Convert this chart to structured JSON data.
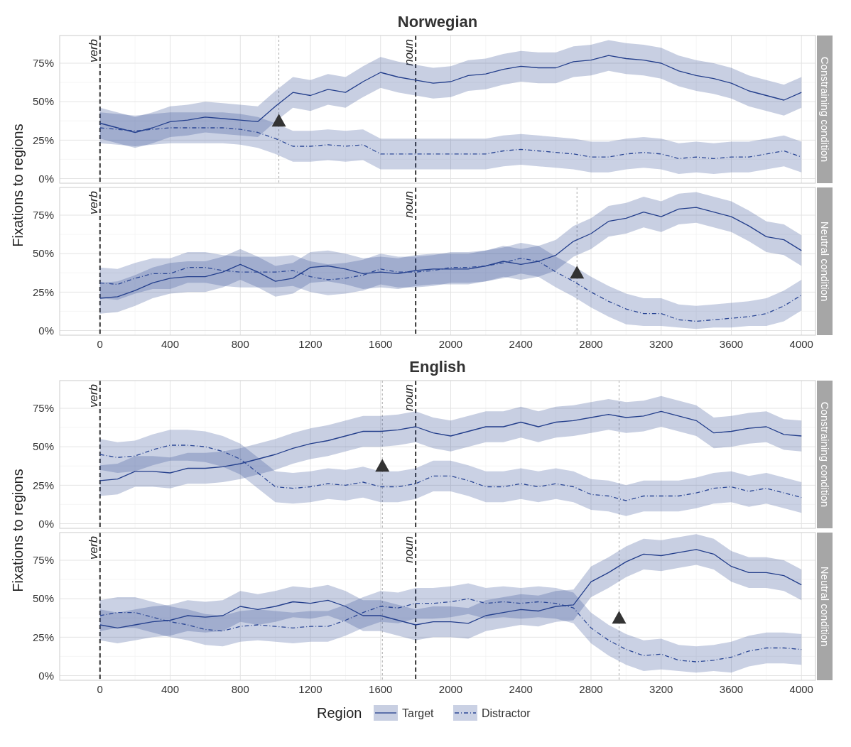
{
  "chart_data": [
    {
      "type": "line",
      "title": "Norwegian",
      "ylabel": "Fixations to regions",
      "y2label": "Constraining condition",
      "tick_labels": "y",
      "grid": true,
      "x": [
        0,
        100,
        200,
        300,
        400,
        500,
        600,
        700,
        800,
        900,
        1000,
        1100,
        1200,
        1300,
        1400,
        1500,
        1600,
        1700,
        1800,
        1900,
        2000,
        2100,
        2200,
        2300,
        2400,
        2500,
        2600,
        2700,
        2800,
        2900,
        3000,
        3100,
        3200,
        3300,
        3400,
        3500,
        3600,
        3700,
        3800,
        3900,
        4000
      ],
      "xlim": [
        -230,
        4080
      ],
      "xticks": [
        0,
        400,
        800,
        1200,
        1600,
        2000,
        2400,
        2800,
        3200,
        3600,
        4000
      ],
      "ylim": [
        -3,
        93
      ],
      "yticks": [
        {
          "value": 0,
          "label": "0%"
        },
        {
          "value": 25,
          "label": "25%"
        },
        {
          "value": 50,
          "label": "50%"
        },
        {
          "value": 75,
          "label": "75%"
        }
      ],
      "ref_lines": [
        {
          "axis": "x",
          "value": 0,
          "label": "verb",
          "line_style": "dashed",
          "color": "#333333"
        },
        {
          "axis": "x",
          "value": 1800,
          "label": "noun",
          "line_style": "dashed",
          "color": "#333333"
        },
        {
          "axis": "x",
          "value": 1020,
          "line_style": "dotted",
          "color": "#aaaaaa"
        }
      ],
      "series": [
        {
          "color": "#233e8b",
          "line_style": "solid",
          "values": [
            36,
            33,
            30,
            33,
            37,
            38,
            40,
            39,
            38,
            37,
            47,
            56,
            54,
            58,
            56,
            63,
            69,
            66,
            64,
            62,
            63,
            67,
            68,
            71,
            73,
            72,
            72,
            76,
            77,
            80,
            78,
            77,
            75,
            70,
            67,
            65,
            62,
            57,
            54,
            51,
            56
          ],
          "lower": [
            26,
            23,
            20,
            23,
            27,
            28,
            30,
            29,
            28,
            27,
            37,
            46,
            44,
            48,
            46,
            53,
            59,
            56,
            54,
            52,
            53,
            57,
            58,
            61,
            63,
            62,
            62,
            66,
            67,
            70,
            68,
            67,
            65,
            60,
            57,
            55,
            52,
            47,
            44,
            41,
            46
          ],
          "upper": [
            46,
            43,
            40,
            43,
            47,
            48,
            50,
            49,
            48,
            47,
            57,
            66,
            64,
            68,
            66,
            73,
            79,
            76,
            74,
            72,
            73,
            77,
            78,
            81,
            83,
            82,
            82,
            86,
            87,
            90,
            88,
            87,
            85,
            80,
            77,
            75,
            72,
            67,
            64,
            61,
            66
          ]
        },
        {
          "color": "#2b4795",
          "line_style": "dashdot",
          "values": [
            33,
            32,
            31,
            32,
            33,
            33,
            33,
            33,
            32,
            30,
            26,
            21,
            21,
            22,
            21,
            22,
            16,
            16,
            16,
            16,
            16,
            16,
            16,
            18,
            19,
            18,
            17,
            16,
            14,
            14,
            16,
            17,
            16,
            13,
            14,
            13,
            14,
            14,
            16,
            18,
            14
          ],
          "lower": [
            23,
            22,
            21,
            22,
            23,
            23,
            23,
            23,
            22,
            20,
            16,
            11,
            11,
            12,
            11,
            12,
            6,
            6,
            6,
            6,
            6,
            6,
            6,
            8,
            9,
            8,
            7,
            6,
            4,
            4,
            6,
            7,
            6,
            3,
            4,
            3,
            4,
            4,
            6,
            8,
            4
          ],
          "upper": [
            43,
            42,
            41,
            42,
            43,
            43,
            43,
            43,
            42,
            40,
            36,
            31,
            31,
            32,
            31,
            32,
            26,
            26,
            26,
            26,
            26,
            26,
            26,
            28,
            29,
            28,
            27,
            26,
            24,
            24,
            26,
            27,
            26,
            23,
            24,
            23,
            24,
            24,
            26,
            28,
            24
          ]
        },
        {
          "type": "scatter",
          "marker": "triangle",
          "color": "#333333",
          "x": [
            1020
          ],
          "values": [
            38
          ]
        }
      ]
    },
    {
      "type": "line",
      "y2label": "Neutral condition",
      "grid": true,
      "x": [
        0,
        100,
        200,
        300,
        400,
        500,
        600,
        700,
        800,
        900,
        1000,
        1100,
        1200,
        1300,
        1400,
        1500,
        1600,
        1700,
        1800,
        1900,
        2000,
        2100,
        2200,
        2300,
        2400,
        2500,
        2600,
        2700,
        2800,
        2900,
        3000,
        3100,
        3200,
        3300,
        3400,
        3500,
        3600,
        3700,
        3800,
        3900,
        4000
      ],
      "xlim": [
        -230,
        4080
      ],
      "xticks": [
        0,
        400,
        800,
        1200,
        1600,
        2000,
        2400,
        2800,
        3200,
        3600,
        4000
      ],
      "ylim": [
        -3,
        93
      ],
      "yticks": [
        {
          "value": 0,
          "label": "0%"
        },
        {
          "value": 25,
          "label": "25%"
        },
        {
          "value": 50,
          "label": "50%"
        },
        {
          "value": 75,
          "label": "75%"
        }
      ],
      "ref_lines": [
        {
          "axis": "x",
          "value": 0,
          "label": "verb",
          "line_style": "dashed",
          "color": "#333333"
        },
        {
          "axis": "x",
          "value": 1800,
          "label": "noun",
          "line_style": "dashed",
          "color": "#333333"
        },
        {
          "axis": "x",
          "value": 2720,
          "line_style": "dotted",
          "color": "#aaaaaa"
        }
      ],
      "series": [
        {
          "color": "#233e8b",
          "line_style": "solid",
          "values": [
            21,
            22,
            26,
            31,
            34,
            35,
            35,
            38,
            43,
            38,
            32,
            34,
            41,
            42,
            40,
            37,
            38,
            37,
            39,
            40,
            40,
            40,
            42,
            45,
            43,
            45,
            49,
            58,
            63,
            71,
            73,
            77,
            74,
            79,
            80,
            77,
            74,
            68,
            61,
            59,
            52
          ],
          "lower": [
            11,
            12,
            16,
            21,
            24,
            25,
            25,
            28,
            33,
            28,
            22,
            24,
            31,
            32,
            30,
            27,
            28,
            27,
            29,
            30,
            30,
            30,
            32,
            35,
            33,
            35,
            39,
            48,
            53,
            61,
            63,
            67,
            64,
            69,
            70,
            67,
            64,
            58,
            51,
            49,
            42
          ],
          "upper": [
            31,
            32,
            36,
            41,
            44,
            45,
            45,
            48,
            53,
            48,
            42,
            44,
            51,
            52,
            50,
            47,
            48,
            47,
            49,
            50,
            50,
            50,
            52,
            55,
            53,
            55,
            59,
            68,
            73,
            81,
            83,
            87,
            84,
            89,
            90,
            87,
            84,
            78,
            71,
            69,
            62
          ]
        },
        {
          "color": "#2b4795",
          "line_style": "dashdot",
          "values": [
            31,
            30,
            34,
            37,
            37,
            41,
            41,
            39,
            38,
            38,
            38,
            39,
            35,
            33,
            34,
            36,
            40,
            38,
            38,
            39,
            41,
            41,
            42,
            44,
            47,
            45,
            38,
            32,
            25,
            19,
            14,
            11,
            11,
            7,
            6,
            7,
            8,
            9,
            11,
            16,
            23
          ],
          "lower": [
            21,
            20,
            24,
            27,
            27,
            31,
            31,
            29,
            28,
            28,
            28,
            29,
            25,
            23,
            24,
            26,
            30,
            28,
            28,
            29,
            31,
            31,
            32,
            34,
            37,
            35,
            28,
            22,
            15,
            9,
            4,
            3,
            3,
            2,
            1,
            2,
            2,
            3,
            3,
            6,
            13
          ],
          "upper": [
            41,
            40,
            44,
            47,
            47,
            51,
            51,
            49,
            48,
            48,
            48,
            49,
            45,
            43,
            44,
            46,
            50,
            48,
            48,
            49,
            51,
            51,
            52,
            54,
            57,
            55,
            48,
            42,
            35,
            29,
            24,
            21,
            21,
            17,
            16,
            17,
            18,
            19,
            21,
            26,
            33
          ]
        },
        {
          "type": "scatter",
          "marker": "triangle",
          "color": "#333333",
          "x": [
            2720
          ],
          "values": [
            38
          ]
        }
      ]
    },
    {
      "type": "line",
      "title": "English",
      "ylabel": "Fixations to regions",
      "y2label": "Constraining condition",
      "tick_labels": "y",
      "grid": true,
      "x": [
        0,
        100,
        200,
        300,
        400,
        500,
        600,
        700,
        800,
        900,
        1000,
        1100,
        1200,
        1300,
        1400,
        1500,
        1600,
        1700,
        1800,
        1900,
        2000,
        2100,
        2200,
        2300,
        2400,
        2500,
        2600,
        2700,
        2800,
        2900,
        3000,
        3100,
        3200,
        3300,
        3400,
        3500,
        3600,
        3700,
        3800,
        3900,
        4000
      ],
      "xlim": [
        -230,
        4080
      ],
      "xticks": [
        0,
        400,
        800,
        1200,
        1600,
        2000,
        2400,
        2800,
        3200,
        3600,
        4000
      ],
      "ylim": [
        -3,
        93
      ],
      "yticks": [
        {
          "value": 0,
          "label": "0%"
        },
        {
          "value": 25,
          "label": "25%"
        },
        {
          "value": 50,
          "label": "50%"
        },
        {
          "value": 75,
          "label": "75%"
        }
      ],
      "ref_lines": [
        {
          "axis": "x",
          "value": 0,
          "label": "verb",
          "line_style": "dashed",
          "color": "#333333"
        },
        {
          "axis": "x",
          "value": 1800,
          "label": "noun",
          "line_style": "dashed",
          "color": "#333333"
        },
        {
          "axis": "x",
          "value": 1610,
          "line_style": "dotted",
          "color": "#aaaaaa"
        },
        {
          "axis": "x",
          "value": 2960,
          "line_style": "dotted",
          "color": "#aaaaaa"
        }
      ],
      "series": [
        {
          "color": "#233e8b",
          "line_style": "solid",
          "values": [
            28,
            29,
            34,
            34,
            33,
            36,
            36,
            37,
            39,
            42,
            45,
            49,
            52,
            54,
            57,
            60,
            60,
            61,
            63,
            59,
            57,
            60,
            63,
            63,
            66,
            63,
            66,
            67,
            69,
            71,
            69,
            70,
            73,
            70,
            67,
            59,
            60,
            62,
            63,
            58,
            57
          ],
          "lower": [
            18,
            19,
            24,
            24,
            23,
            26,
            26,
            27,
            29,
            32,
            35,
            39,
            42,
            44,
            47,
            50,
            50,
            51,
            53,
            49,
            47,
            50,
            53,
            53,
            56,
            53,
            56,
            57,
            59,
            61,
            59,
            60,
            63,
            60,
            57,
            49,
            50,
            52,
            53,
            48,
            47
          ],
          "upper": [
            38,
            39,
            44,
            44,
            43,
            46,
            46,
            47,
            49,
            52,
            55,
            59,
            62,
            64,
            67,
            70,
            70,
            71,
            73,
            69,
            67,
            70,
            73,
            73,
            76,
            73,
            76,
            77,
            79,
            81,
            79,
            80,
            83,
            80,
            77,
            69,
            70,
            72,
            73,
            68,
            67
          ]
        },
        {
          "color": "#2b4795",
          "line_style": "dashdot",
          "values": [
            45,
            43,
            44,
            48,
            51,
            51,
            50,
            47,
            42,
            33,
            24,
            23,
            24,
            26,
            25,
            27,
            24,
            24,
            26,
            31,
            31,
            28,
            24,
            24,
            26,
            24,
            26,
            24,
            19,
            18,
            15,
            18,
            18,
            18,
            20,
            23,
            24,
            21,
            23,
            20,
            17
          ],
          "lower": [
            35,
            33,
            34,
            38,
            41,
            41,
            40,
            37,
            32,
            23,
            14,
            13,
            14,
            16,
            15,
            17,
            14,
            14,
            16,
            21,
            21,
            18,
            14,
            14,
            16,
            14,
            16,
            14,
            9,
            8,
            5,
            8,
            8,
            8,
            10,
            13,
            14,
            11,
            13,
            10,
            7
          ],
          "upper": [
            55,
            53,
            54,
            58,
            61,
            61,
            60,
            57,
            52,
            43,
            34,
            33,
            34,
            36,
            35,
            37,
            34,
            34,
            36,
            41,
            41,
            38,
            34,
            34,
            36,
            34,
            36,
            34,
            29,
            28,
            25,
            28,
            28,
            28,
            30,
            33,
            34,
            31,
            33,
            30,
            27
          ]
        },
        {
          "type": "scatter",
          "marker": "triangle",
          "color": "#333333",
          "x": [
            1610
          ],
          "values": [
            38
          ]
        }
      ]
    },
    {
      "type": "line",
      "y2label": "Neutral condition",
      "grid": true,
      "legend": "bottom",
      "legend_title": "Region",
      "x": [
        0,
        100,
        200,
        300,
        400,
        500,
        600,
        700,
        800,
        900,
        1000,
        1100,
        1200,
        1300,
        1400,
        1500,
        1600,
        1700,
        1800,
        1900,
        2000,
        2100,
        2200,
        2300,
        2400,
        2500,
        2600,
        2700,
        2800,
        2900,
        3000,
        3100,
        3200,
        3300,
        3400,
        3500,
        3600,
        3700,
        3800,
        3900,
        4000
      ],
      "xlim": [
        -230,
        4080
      ],
      "xticks": [
        0,
        400,
        800,
        1200,
        1600,
        2000,
        2400,
        2800,
        3200,
        3600,
        4000
      ],
      "ylim": [
        -3,
        93
      ],
      "yticks": [
        {
          "value": 0,
          "label": "0%"
        },
        {
          "value": 25,
          "label": "25%"
        },
        {
          "value": 50,
          "label": "50%"
        },
        {
          "value": 75,
          "label": "75%"
        }
      ],
      "ref_lines": [
        {
          "axis": "x",
          "value": 0,
          "label": "verb",
          "line_style": "dashed",
          "color": "#333333"
        },
        {
          "axis": "x",
          "value": 1800,
          "label": "noun",
          "line_style": "dashed",
          "color": "#333333"
        },
        {
          "axis": "x",
          "value": 1610,
          "line_style": "dotted",
          "color": "#aaaaaa"
        },
        {
          "axis": "x",
          "value": 2960,
          "line_style": "dotted",
          "color": "#aaaaaa"
        }
      ],
      "series": [
        {
          "name": "Target",
          "color": "#233e8b",
          "line_style": "solid",
          "values": [
            33,
            31,
            33,
            35,
            36,
            39,
            38,
            39,
            45,
            43,
            45,
            48,
            47,
            49,
            45,
            39,
            39,
            36,
            33,
            35,
            35,
            34,
            39,
            41,
            43,
            42,
            45,
            46,
            61,
            67,
            74,
            79,
            78,
            80,
            82,
            79,
            71,
            67,
            67,
            65,
            59
          ],
          "lower": [
            23,
            21,
            23,
            25,
            26,
            29,
            28,
            29,
            35,
            33,
            35,
            38,
            37,
            39,
            35,
            29,
            29,
            26,
            23,
            25,
            25,
            24,
            29,
            31,
            33,
            32,
            35,
            36,
            51,
            57,
            64,
            69,
            68,
            70,
            72,
            69,
            61,
            57,
            57,
            55,
            49
          ],
          "upper": [
            43,
            41,
            43,
            45,
            46,
            49,
            48,
            49,
            55,
            53,
            55,
            58,
            57,
            59,
            55,
            49,
            49,
            46,
            43,
            45,
            45,
            44,
            49,
            51,
            53,
            52,
            55,
            56,
            71,
            77,
            84,
            89,
            88,
            90,
            92,
            89,
            81,
            77,
            77,
            75,
            69
          ]
        },
        {
          "name": "Distractor",
          "color": "#2b4795",
          "line_style": "dashdot",
          "values": [
            39,
            41,
            41,
            38,
            35,
            33,
            30,
            29,
            32,
            33,
            32,
            31,
            32,
            32,
            36,
            41,
            45,
            44,
            47,
            47,
            48,
            50,
            47,
            48,
            47,
            48,
            47,
            44,
            31,
            23,
            17,
            13,
            14,
            10,
            9,
            10,
            12,
            16,
            18,
            18,
            17
          ],
          "lower": [
            29,
            31,
            31,
            28,
            25,
            23,
            20,
            19,
            22,
            23,
            22,
            21,
            22,
            22,
            26,
            31,
            35,
            34,
            37,
            37,
            38,
            40,
            37,
            38,
            37,
            38,
            37,
            34,
            21,
            13,
            7,
            3,
            4,
            3,
            2,
            3,
            2,
            6,
            8,
            8,
            7
          ],
          "upper": [
            49,
            51,
            51,
            48,
            45,
            43,
            40,
            39,
            42,
            43,
            42,
            41,
            42,
            42,
            46,
            51,
            55,
            54,
            57,
            57,
            58,
            60,
            57,
            58,
            57,
            58,
            57,
            54,
            41,
            33,
            27,
            23,
            24,
            20,
            19,
            20,
            22,
            26,
            28,
            28,
            27
          ]
        },
        {
          "type": "scatter",
          "marker": "triangle",
          "color": "#333333",
          "x": [
            2960
          ],
          "values": [
            38
          ]
        }
      ]
    }
  ]
}
